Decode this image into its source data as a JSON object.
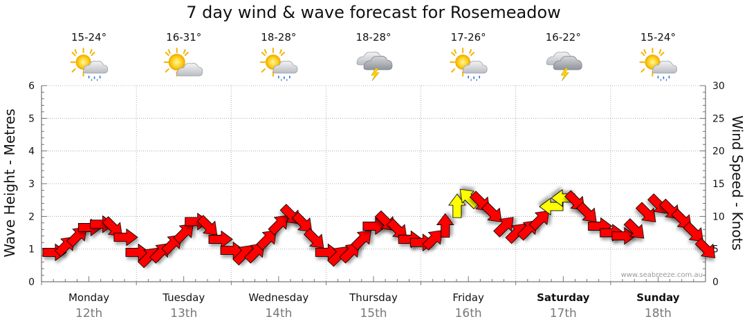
{
  "title": "7 day wind & wave forecast for Rosemeadow",
  "watermark": "www.seabreeze.com.au",
  "colors": {
    "strong_wind": "#ff0000",
    "light_wind": "#ffff00",
    "arrow_outline": "#000000",
    "grid": "#9a9a9a",
    "date_text": "#777777"
  },
  "chart_data": {
    "type": "line",
    "y_left": {
      "label": "Wave Height - Metres",
      "range": [
        0,
        6
      ],
      "ticks": [
        0,
        1,
        2,
        3,
        4,
        5,
        6
      ]
    },
    "y_right": {
      "label": "Wind Speed - Knots",
      "range": [
        0,
        30
      ],
      "ticks": [
        0,
        5,
        10,
        15,
        20,
        25,
        30
      ]
    },
    "grid": true,
    "days": [
      {
        "name": "Monday",
        "date": "12th",
        "temp": "15-24°",
        "icon": "sun-cloud-rain-icon",
        "weekend": false
      },
      {
        "name": "Tuesday",
        "date": "13th",
        "temp": "16-31°",
        "icon": "sun-cloud-icon",
        "weekend": false
      },
      {
        "name": "Wednesday",
        "date": "14th",
        "temp": "18-28°",
        "icon": "sun-cloud-rain-icon",
        "weekend": false
      },
      {
        "name": "Thursday",
        "date": "15th",
        "temp": "18-28°",
        "icon": "storm-cloud-icon",
        "weekend": false
      },
      {
        "name": "Friday",
        "date": "16th",
        "temp": "17-26°",
        "icon": "sun-cloud-rain-icon",
        "weekend": false
      },
      {
        "name": "Saturday",
        "date": "17th",
        "temp": "16-22°",
        "icon": "storm-cloud-icon",
        "weekend": true
      },
      {
        "name": "Sunday",
        "date": "18th",
        "temp": "15-24°",
        "icon": "sun-cloud-rain-icon",
        "weekend": true
      }
    ],
    "wind_series": {
      "name": "Wind Speed - Knots",
      "unit": "knots",
      "points_per_day": 8,
      "speed": [
        4.5,
        5.5,
        7,
        8.3,
        8.8,
        8.3,
        6.8,
        4.5,
        3.8,
        4.5,
        5.8,
        7.5,
        9.2,
        8.5,
        6.5,
        4.8,
        4.2,
        4.5,
        6.5,
        8.8,
        10.2,
        9,
        6.5,
        4.5,
        4,
        4.5,
        6.5,
        8.5,
        9.2,
        8,
        6.5,
        6,
        6.5,
        8.5,
        11.5,
        12.8,
        12.2,
        10.5,
        8.5,
        7.5,
        8,
        9.5,
        11.5,
        12.8,
        12.3,
        10.5,
        8.5,
        7.5,
        7,
        8,
        10.5,
        11.8,
        11,
        9.5,
        7.5,
        5
      ],
      "direction": [
        "E",
        "NE",
        "NE",
        "E",
        "E",
        "SE",
        "E",
        "E",
        "NE",
        "NE",
        "NE",
        "NE",
        "E",
        "SE",
        "E",
        "E",
        "NE",
        "NE",
        "NE",
        "NE",
        "SE",
        "SE",
        "SE",
        "E",
        "NE",
        "NE",
        "NE",
        "E",
        "SE",
        "SE",
        "E",
        "E",
        "NE",
        "N",
        "N",
        "NW",
        "SE",
        "SE",
        "NE",
        "NE",
        "NE",
        "NE",
        "W",
        "W",
        "SE",
        "SE",
        "E",
        "E",
        "E",
        "SE",
        "SE",
        "SE",
        "SE",
        "SE",
        "SE",
        "SE"
      ],
      "light": [
        false,
        false,
        false,
        false,
        false,
        false,
        false,
        false,
        false,
        false,
        false,
        false,
        false,
        false,
        false,
        false,
        false,
        false,
        false,
        false,
        false,
        false,
        false,
        false,
        false,
        false,
        false,
        false,
        false,
        false,
        false,
        false,
        false,
        false,
        true,
        true,
        false,
        false,
        false,
        false,
        false,
        false,
        true,
        true,
        false,
        false,
        false,
        false,
        false,
        false,
        false,
        false,
        false,
        false,
        false,
        false
      ]
    }
  }
}
